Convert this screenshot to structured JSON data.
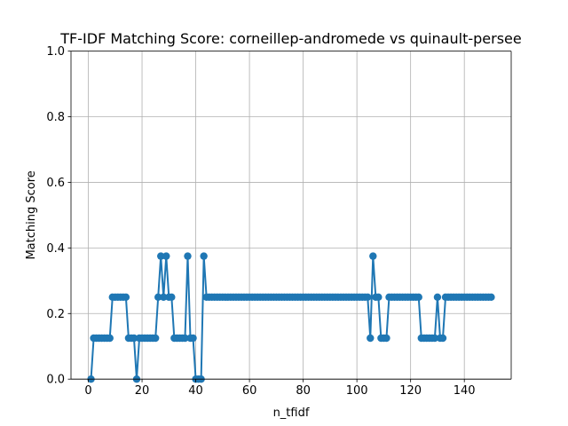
{
  "chart_data": {
    "type": "line",
    "title": "TF-IDF Matching Score: corneillep-andromede vs quinault-persee",
    "xlabel": "n_tfidf",
    "ylabel": "Matching Score",
    "xlim": [
      -6.45,
      157.45
    ],
    "ylim": [
      0.0,
      1.0
    ],
    "xticks": [
      0,
      20,
      40,
      60,
      80,
      100,
      120,
      140
    ],
    "yticks": [
      0.0,
      0.2,
      0.4,
      0.6,
      0.8,
      1.0
    ],
    "ytick_labels": [
      "0.0",
      "0.2",
      "0.4",
      "0.6",
      "0.8",
      "1.0"
    ],
    "grid": true,
    "marker": "circle",
    "color": "#1f77b4",
    "series": [
      {
        "x": [
          1,
          2,
          3,
          4,
          5,
          6,
          7,
          8,
          9,
          10,
          11,
          12,
          13,
          14,
          15,
          16,
          17,
          18,
          19,
          20,
          21,
          22,
          23,
          24,
          25,
          26,
          27,
          28,
          29,
          30,
          31,
          32,
          33,
          34,
          35,
          36,
          37,
          38,
          39,
          40,
          41,
          42,
          43,
          44,
          45,
          46,
          47,
          48,
          49,
          50,
          51,
          52,
          53,
          54,
          55,
          56,
          57,
          58,
          59,
          60,
          61,
          62,
          63,
          64,
          65,
          66,
          67,
          68,
          69,
          70,
          71,
          72,
          73,
          74,
          75,
          76,
          77,
          78,
          79,
          80,
          81,
          82,
          83,
          84,
          85,
          86,
          87,
          88,
          89,
          90,
          91,
          92,
          93,
          94,
          95,
          96,
          97,
          98,
          99,
          100,
          101,
          102,
          103,
          104,
          105,
          106,
          107,
          108,
          109,
          110,
          111,
          112,
          113,
          114,
          115,
          116,
          117,
          118,
          119,
          120,
          121,
          122,
          123,
          124,
          125,
          126,
          127,
          128,
          129,
          130,
          131,
          132,
          133,
          134,
          135,
          136,
          137,
          138,
          139,
          140,
          141,
          142,
          143,
          144,
          145,
          146,
          147,
          148,
          149,
          150
        ],
        "y": [
          0,
          0.125,
          0.125,
          0.125,
          0.125,
          0.125,
          0.125,
          0.125,
          0.25,
          0.25,
          0.25,
          0.25,
          0.25,
          0.25,
          0.125,
          0.125,
          0.125,
          0,
          0.125,
          0.125,
          0.125,
          0.125,
          0.125,
          0.125,
          0.125,
          0.25,
          0.375,
          0.25,
          0.375,
          0.25,
          0.25,
          0.125,
          0.125,
          0.125,
          0.125,
          0.125,
          0.375,
          0.125,
          0.125,
          0,
          0,
          0,
          0.375,
          0.25,
          0.25,
          0.25,
          0.25,
          0.25,
          0.25,
          0.25,
          0.25,
          0.25,
          0.25,
          0.25,
          0.25,
          0.25,
          0.25,
          0.25,
          0.25,
          0.25,
          0.25,
          0.25,
          0.25,
          0.25,
          0.25,
          0.25,
          0.25,
          0.25,
          0.25,
          0.25,
          0.25,
          0.25,
          0.25,
          0.25,
          0.25,
          0.25,
          0.25,
          0.25,
          0.25,
          0.25,
          0.25,
          0.25,
          0.25,
          0.25,
          0.25,
          0.25,
          0.25,
          0.25,
          0.25,
          0.25,
          0.25,
          0.25,
          0.25,
          0.25,
          0.25,
          0.25,
          0.25,
          0.25,
          0.25,
          0.25,
          0.25,
          0.25,
          0.25,
          0.25,
          0.125,
          0.375,
          0.25,
          0.25,
          0.125,
          0.125,
          0.125,
          0.25,
          0.25,
          0.25,
          0.25,
          0.25,
          0.25,
          0.25,
          0.25,
          0.25,
          0.25,
          0.25,
          0.25,
          0.125,
          0.125,
          0.125,
          0.125,
          0.125,
          0.125,
          0.25,
          0.125,
          0.125,
          0.25,
          0.25,
          0.25,
          0.25,
          0.25,
          0.25,
          0.25,
          0.25,
          0.25,
          0.25,
          0.25,
          0.25,
          0.25,
          0.25,
          0.25,
          0.25,
          0.25,
          0.25
        ]
      }
    ]
  }
}
